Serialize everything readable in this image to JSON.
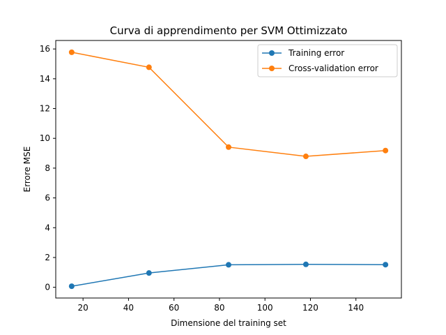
{
  "chart_data": {
    "type": "line",
    "title": "Curva di apprendimento per SVM Ottimizzato",
    "xlabel": "Dimensione del training set",
    "ylabel": "Errore MSE",
    "x": [
      15,
      49,
      84,
      118,
      153
    ],
    "series": [
      {
        "name": "Training error",
        "color": "#1f77b4",
        "values": [
          0.07,
          0.96,
          1.51,
          1.54,
          1.52
        ]
      },
      {
        "name": "Cross-validation error",
        "color": "#ff7f0e",
        "values": [
          15.78,
          14.77,
          9.41,
          8.79,
          9.18
        ]
      }
    ],
    "xlim": [
      8,
      160
    ],
    "ylim": [
      -0.72,
      16.57
    ],
    "xticks": [
      20,
      40,
      60,
      80,
      100,
      120,
      140
    ],
    "yticks": [
      0,
      2,
      4,
      6,
      8,
      10,
      12,
      14,
      16
    ],
    "grid": false,
    "legend_position": "upper right",
    "marker": "circle"
  }
}
